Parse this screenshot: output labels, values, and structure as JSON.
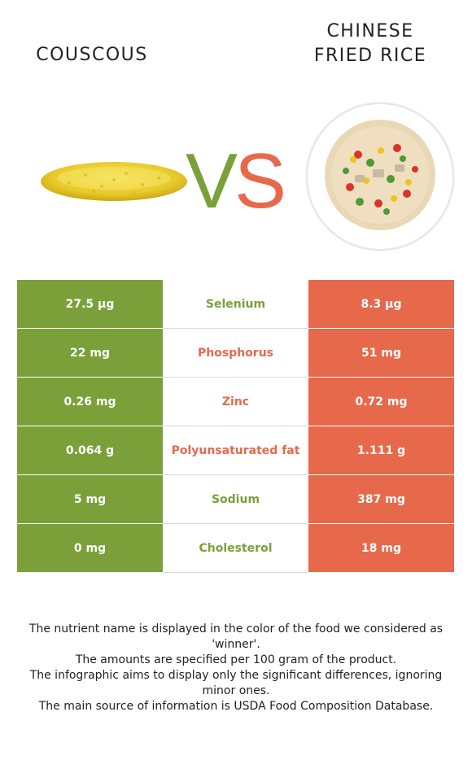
{
  "titles": {
    "left": "COUSCOUS",
    "right": "CHINESE\nFRIED RICE"
  },
  "vs": {
    "v": "V",
    "s": "S"
  },
  "colors": {
    "left": "#7ba03a",
    "right": "#e6694c"
  },
  "rows": [
    {
      "nutrient": "Selenium",
      "left": "27.5 µg",
      "right": "8.3 µg",
      "winner": "left"
    },
    {
      "nutrient": "Phosphorus",
      "left": "22 mg",
      "right": "51 mg",
      "winner": "right"
    },
    {
      "nutrient": "Zinc",
      "left": "0.26 mg",
      "right": "0.72 mg",
      "winner": "right"
    },
    {
      "nutrient": "Polyunsaturated fat",
      "left": "0.064 g",
      "right": "1.111 g",
      "winner": "right"
    },
    {
      "nutrient": "Sodium",
      "left": "5 mg",
      "right": "387 mg",
      "winner": "left"
    },
    {
      "nutrient": "Cholesterol",
      "left": "0 mg",
      "right": "18 mg",
      "winner": "left"
    }
  ],
  "footer": [
    "The nutrient name is displayed in the color of the food we considered as 'winner'.",
    "The amounts are specified per 100 gram of the product.",
    "The infographic aims to display only the significant differences, ignoring minor ones.",
    "The main source of information is USDA Food Composition Database."
  ]
}
